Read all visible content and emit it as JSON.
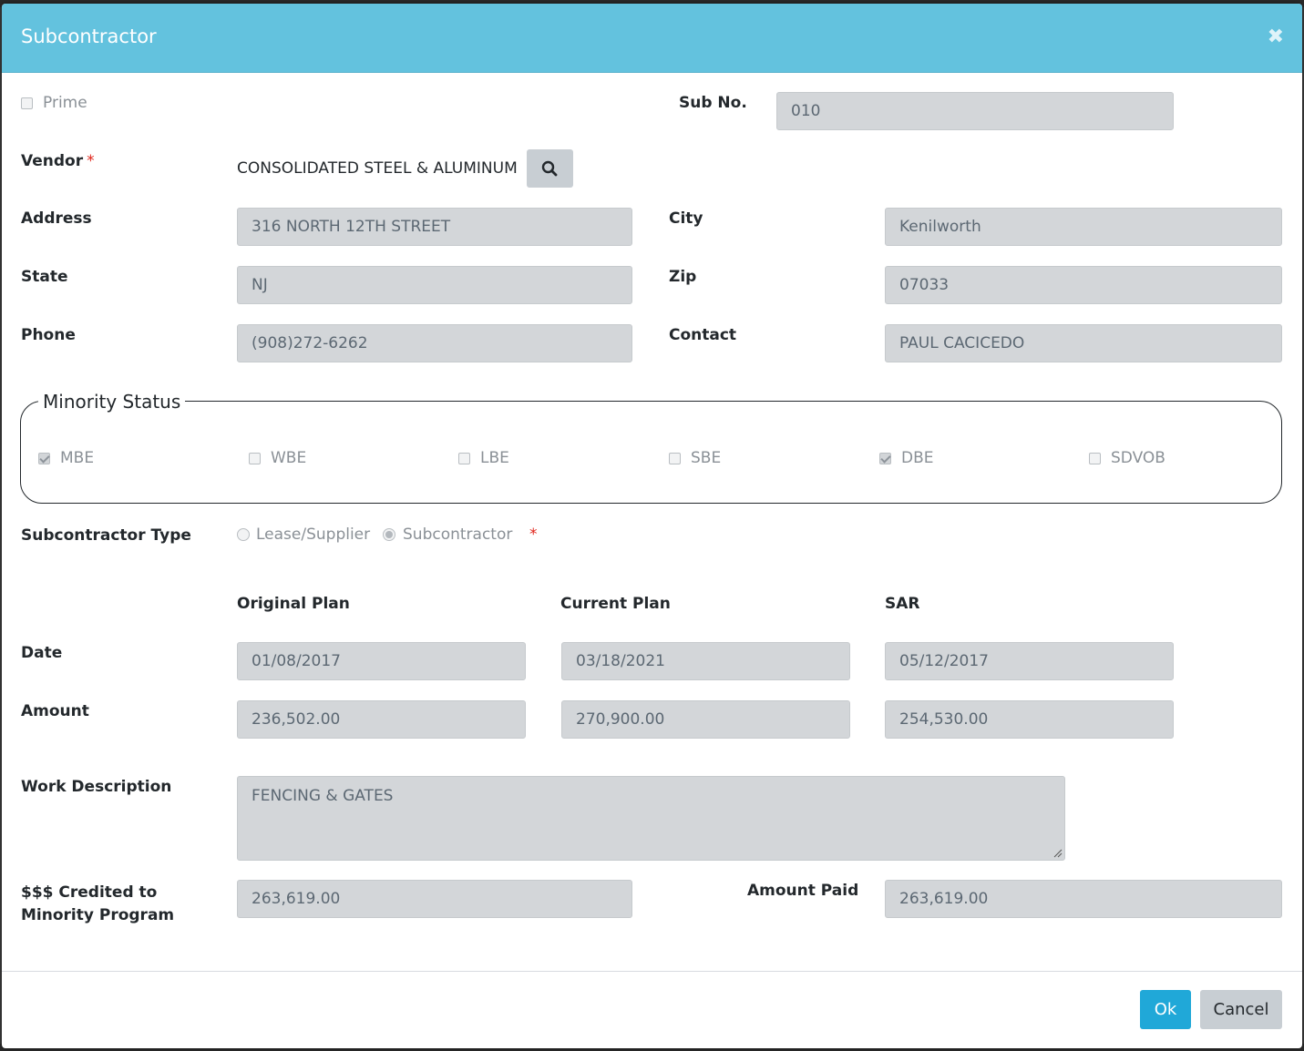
{
  "modal": {
    "title": "Subcontractor",
    "close_icon": "close-icon"
  },
  "prime": {
    "label": "Prime",
    "checked": false
  },
  "sub_no": {
    "label": "Sub No.",
    "value": "010"
  },
  "vendor": {
    "label": "Vendor",
    "required_mark": "*",
    "name": "CONSOLIDATED STEEL & ALUMINUM",
    "search_icon": "search-icon"
  },
  "address": {
    "label": "Address",
    "value": "316 NORTH 12TH STREET"
  },
  "city": {
    "label": "City",
    "value": "Kenilworth"
  },
  "state": {
    "label": "State",
    "value": "NJ"
  },
  "zip": {
    "label": "Zip",
    "value": "07033"
  },
  "phone": {
    "label": "Phone",
    "value": "(908)272-6262"
  },
  "contact": {
    "label": "Contact",
    "value": "PAUL CACICEDO"
  },
  "minority": {
    "legend": "Minority Status",
    "items": [
      {
        "label": "MBE",
        "checked": true
      },
      {
        "label": "WBE",
        "checked": false
      },
      {
        "label": "LBE",
        "checked": false
      },
      {
        "label": "SBE",
        "checked": false
      },
      {
        "label": "DBE",
        "checked": true
      },
      {
        "label": "SDVOB",
        "checked": false
      }
    ]
  },
  "sub_type": {
    "label": "Subcontractor Type",
    "options": [
      {
        "label": "Lease/Supplier",
        "selected": false
      },
      {
        "label": "Subcontractor",
        "selected": true
      }
    ],
    "required_mark": "*"
  },
  "plans": {
    "headers": [
      "Original Plan",
      "Current Plan",
      "SAR"
    ],
    "date_label": "Date",
    "amount_label": "Amount",
    "dates": [
      "01/08/2017",
      "03/18/2021",
      "05/12/2017"
    ],
    "amounts": [
      "236,502.00",
      "270,900.00",
      "254,530.00"
    ]
  },
  "work": {
    "label": "Work Description",
    "value": "FENCING & GATES"
  },
  "credited": {
    "label_line1": "$$$ Credited to",
    "label_line2": "Minority Program",
    "value": "263,619.00"
  },
  "amount_paid": {
    "label": "Amount Paid",
    "value": "263,619.00"
  },
  "footer": {
    "ok_label": "Ok",
    "cancel_label": "Cancel"
  },
  "colors": {
    "header": "#63c2de",
    "primary": "#20a8d8",
    "input_bg": "#d3d6d9",
    "required": "#e0251b"
  }
}
